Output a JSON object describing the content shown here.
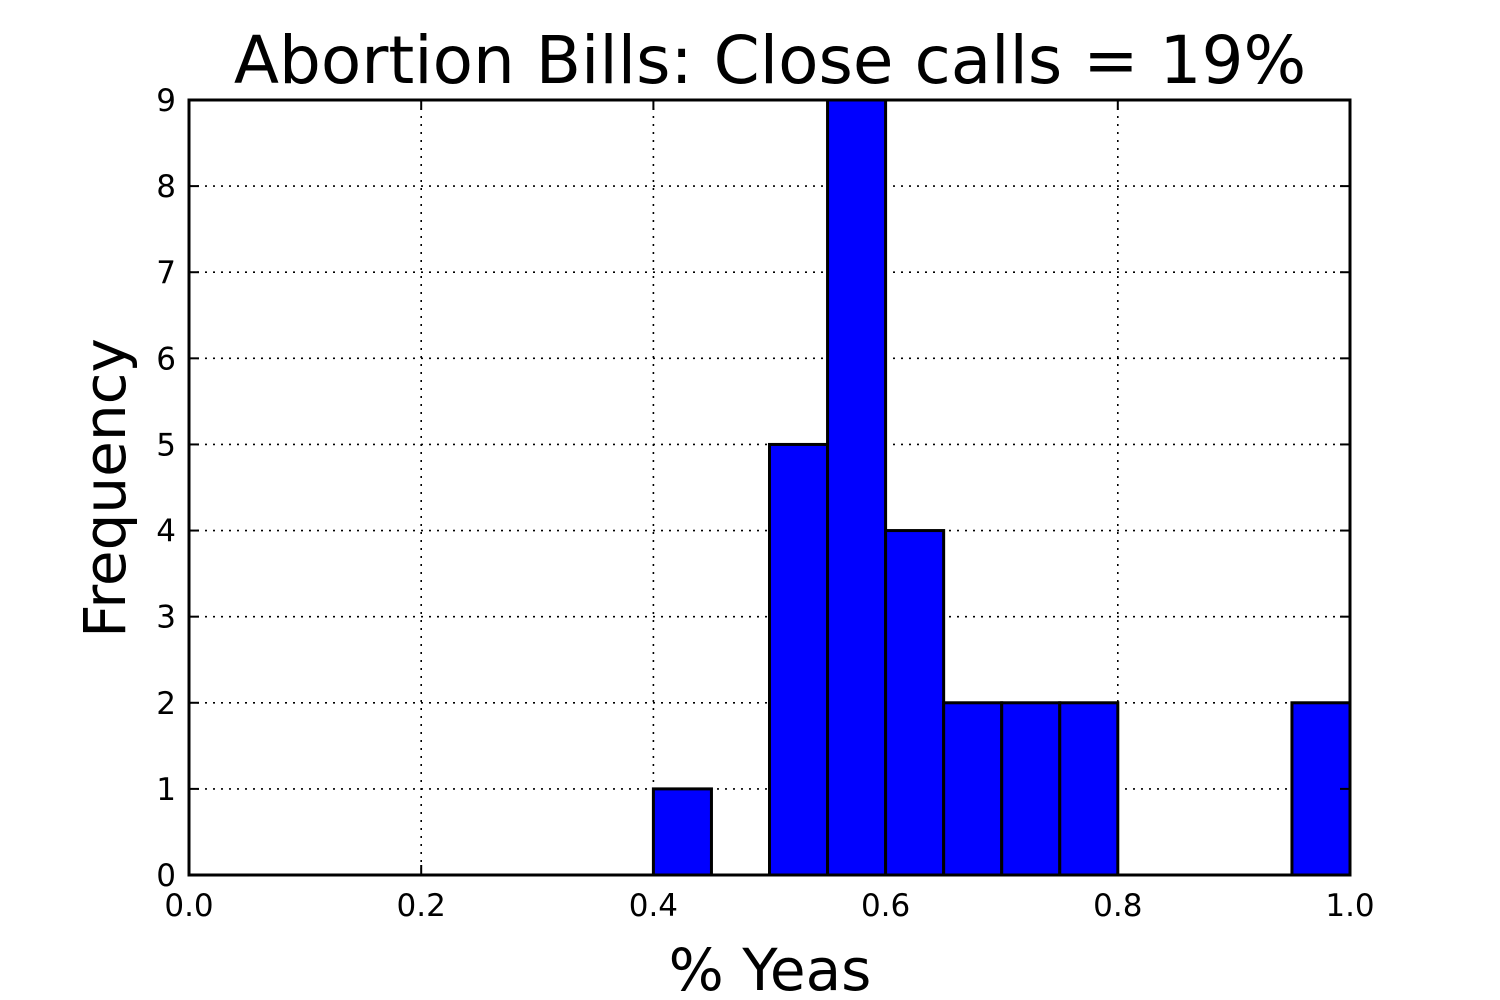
{
  "chart_data": {
    "type": "bar",
    "title": "Abortion Bills: Close calls = 19%",
    "xlabel": "% Yeas",
    "ylabel": "Frequency",
    "xlim": [
      0.0,
      1.0
    ],
    "ylim": [
      0,
      9
    ],
    "x_ticks": [
      "0.0",
      "0.2",
      "0.4",
      "0.6",
      "0.8",
      "1.0"
    ],
    "y_ticks": [
      "0",
      "1",
      "2",
      "3",
      "4",
      "5",
      "6",
      "7",
      "8",
      "9"
    ],
    "grid": true,
    "bar_color": "#0000ff",
    "bins": [
      {
        "start": 0.0,
        "end": 0.05,
        "value": 0
      },
      {
        "start": 0.4,
        "end": 0.45,
        "value": 1
      },
      {
        "start": 0.5,
        "end": 0.55,
        "value": 5
      },
      {
        "start": 0.55,
        "end": 0.6,
        "value": 9
      },
      {
        "start": 0.6,
        "end": 0.65,
        "value": 4
      },
      {
        "start": 0.65,
        "end": 0.7,
        "value": 2
      },
      {
        "start": 0.7,
        "end": 0.75,
        "value": 2
      },
      {
        "start": 0.75,
        "end": 0.8,
        "value": 2
      },
      {
        "start": 0.95,
        "end": 1.0,
        "value": 2
      }
    ]
  }
}
